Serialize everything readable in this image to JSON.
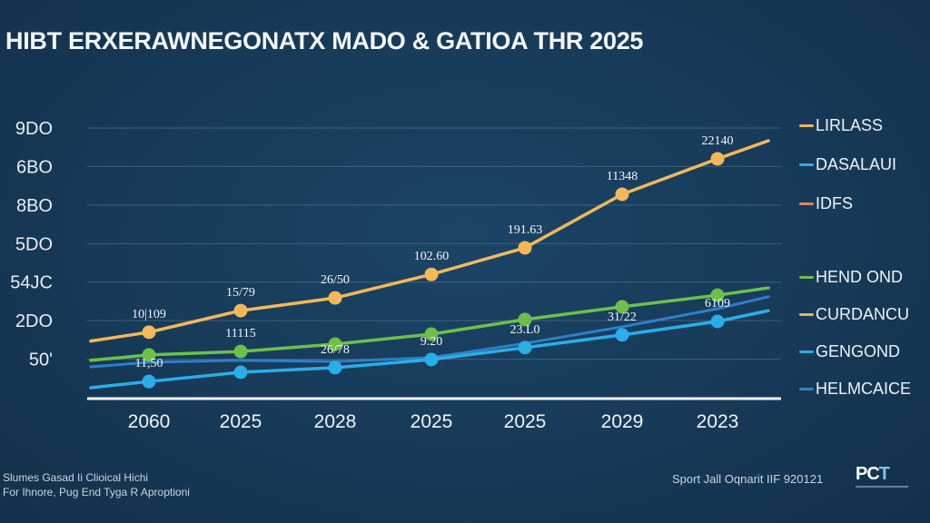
{
  "header": {
    "title": "HIBT ERXERAWNEGONATX MADO & GATIOA THR 2025"
  },
  "footer": {
    "note_line1": "Slumes Gasad Ii Clioical Hichi",
    "note_line2": "For Ihnore, Pug End Tyga R Aproptioni",
    "source": "Sport Jall Oqnarit IIF 920121",
    "logo_text_main": "PC",
    "logo_text_accent": "T",
    "logo_semantic": "company-logo"
  },
  "chart_data": {
    "type": "line",
    "title": "HIBT ERXERAWNEGONATX MADO & GATIOA THR 2025",
    "xlabel": "",
    "ylabel": "",
    "grid": true,
    "legend_position": "right",
    "categories": [
      "2060",
      "2025",
      "2028",
      "2025",
      "2025",
      "2029",
      "2023"
    ],
    "y_ticks": [
      {
        "label": "50'",
        "value": 1
      },
      {
        "label": "2DO",
        "value": 2
      },
      {
        "label": "54JC",
        "value": 3
      },
      {
        "label": "5DO",
        "value": 4
      },
      {
        "label": "8BO",
        "value": 5
      },
      {
        "label": "6BO",
        "value": 6
      },
      {
        "label": "9DO",
        "value": 7
      }
    ],
    "ylim": [
      0,
      7
    ],
    "series": [
      {
        "name": "LIRLASS",
        "color": "#f2b85a",
        "markers": true,
        "start": 1.47,
        "values": [
          1.7,
          2.26,
          2.59,
          3.2,
          3.89,
          5.28,
          6.2
        ],
        "end": 6.67,
        "data_labels": [
          "10|109",
          "15/79",
          "26/50",
          "102.60",
          "191.63",
          "11348",
          "22140"
        ]
      },
      {
        "name": "HEND OND",
        "color": "#6cc04a",
        "markers": true,
        "start": 0.97,
        "values": [
          1.11,
          1.2,
          1.39,
          1.65,
          2.03,
          2.36,
          2.66
        ],
        "end": 2.85,
        "data_labels": [
          "",
          "11115",
          "",
          "",
          "",
          "",
          ""
        ]
      },
      {
        "name": "HELMCAICE",
        "color": "#2f7fc8",
        "markers": false,
        "start": 0.8,
        "values": [
          0.92,
          0.97,
          0.94,
          1.04,
          1.41,
          1.84,
          2.31
        ],
        "end": 2.62,
        "data_labels": [
          "",
          "",
          "",
          "",
          "",
          "",
          ""
        ]
      },
      {
        "name": "GENGOND",
        "color": "#29aee8",
        "markers": true,
        "start": 0.26,
        "values": [
          0.42,
          0.66,
          0.78,
          0.99,
          1.3,
          1.63,
          1.98
        ],
        "end": 2.26,
        "data_labels": [
          "11,50",
          "",
          "26/78",
          "9.20",
          "23.L0",
          "31/22",
          "6109"
        ]
      }
    ],
    "legend": [
      {
        "label": "LIRLASS",
        "color": "#f2b85a"
      },
      {
        "label": "DASALAUI",
        "color": "#35a8e0"
      },
      {
        "label": "IDFS",
        "color": "#d9875f"
      },
      {
        "label": "HEND OND",
        "color": "#6cc04a"
      },
      {
        "label": "CURDANCU",
        "color": "#e6b45e"
      },
      {
        "label": "GENGOND",
        "color": "#29aee8"
      },
      {
        "label": "HELMCAICE",
        "color": "#2f7fc8"
      }
    ]
  }
}
